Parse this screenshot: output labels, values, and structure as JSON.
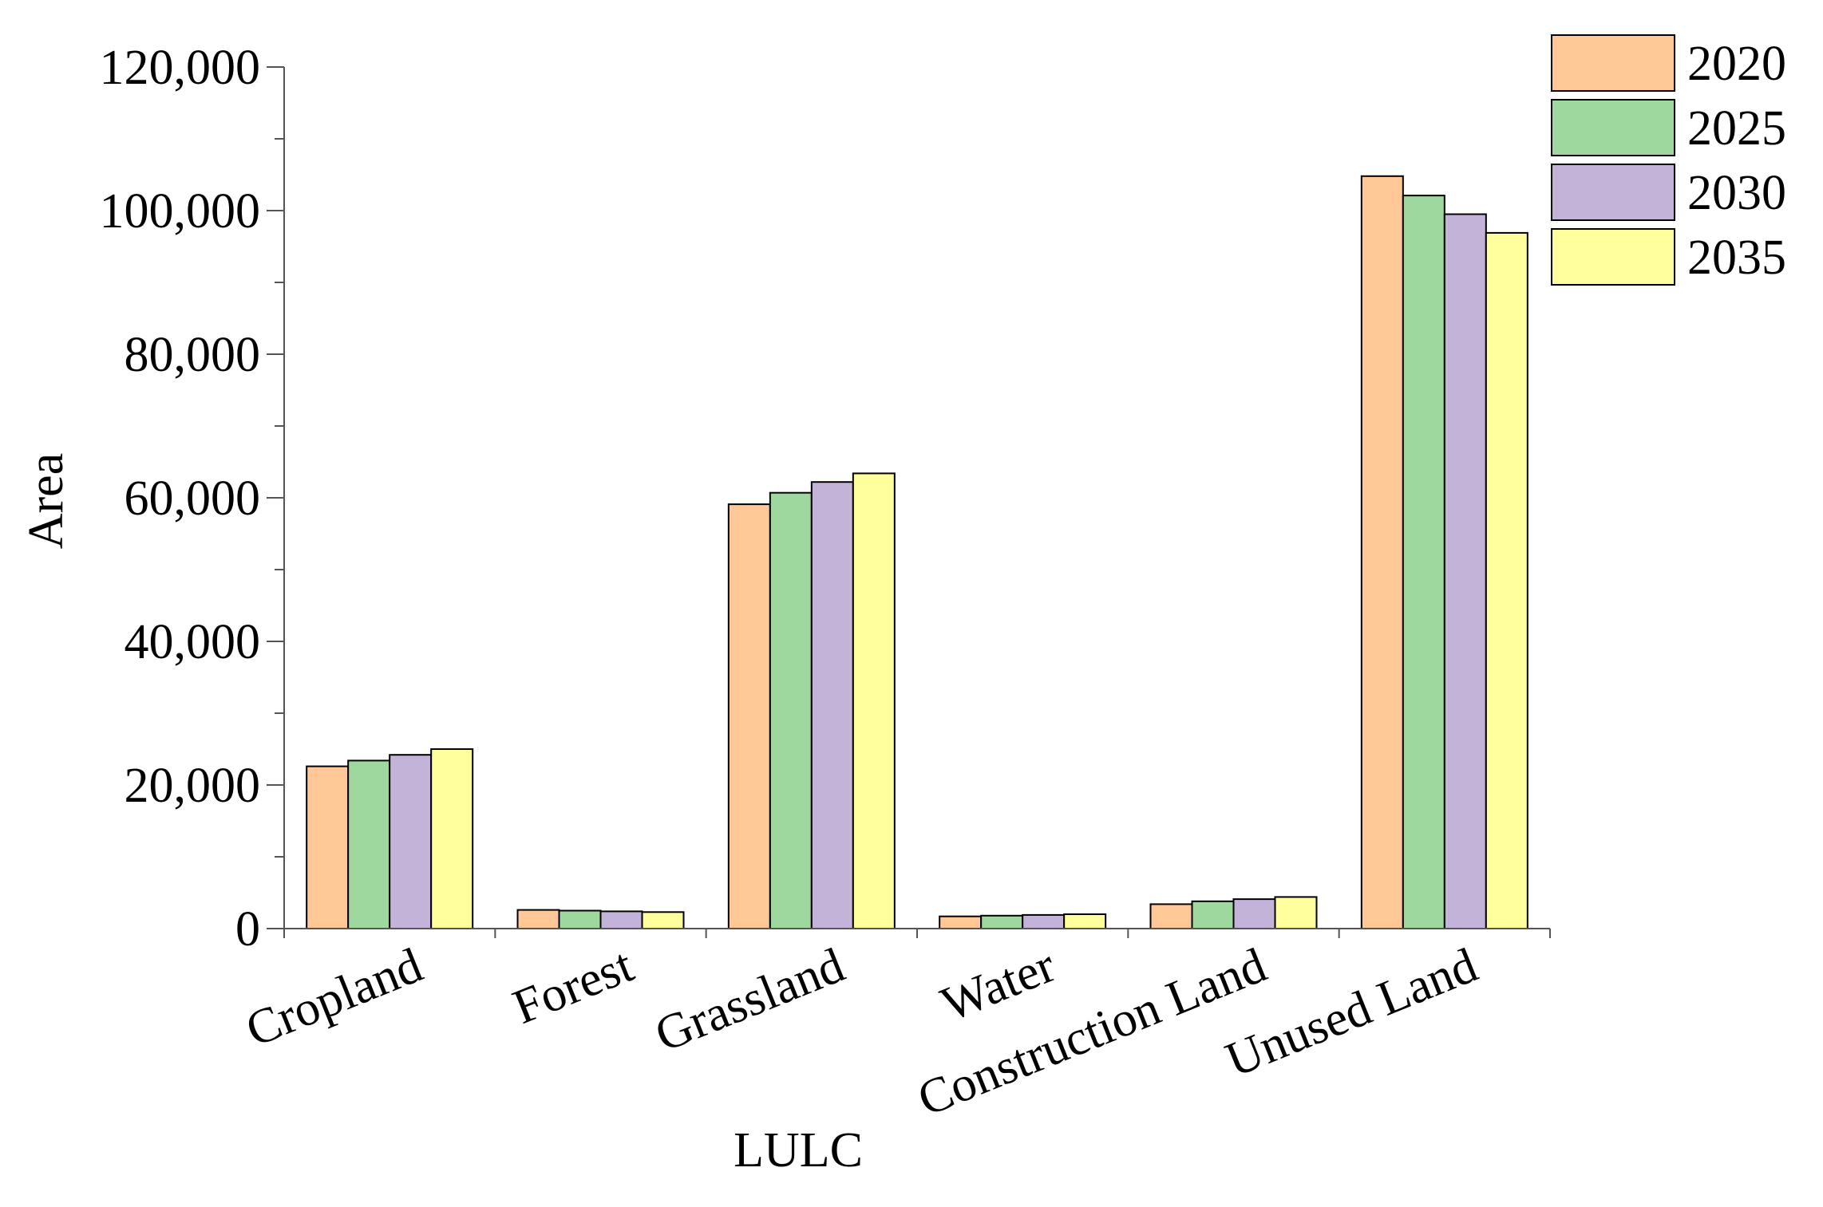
{
  "chart_data": {
    "type": "bar",
    "title": "",
    "xlabel": "LULC",
    "ylabel": "Area",
    "ylim": [
      0,
      120000
    ],
    "yticks": [
      0,
      20000,
      40000,
      60000,
      80000,
      100000,
      120000
    ],
    "ytick_labels": [
      "0",
      "20,000",
      "40,000",
      "60,000",
      "80,000",
      "100,000",
      "120,000"
    ],
    "categories": [
      "Cropland",
      "Forest",
      "Grassland",
      "Water",
      "Construction Land",
      "Unused Land"
    ],
    "series": [
      {
        "name": "2020",
        "color": "#FFC896",
        "values": [
          22600,
          2600,
          59100,
          1700,
          3400,
          104800
        ]
      },
      {
        "name": "2025",
        "color": "#9ED89E",
        "values": [
          23400,
          2500,
          60700,
          1800,
          3800,
          102100
        ]
      },
      {
        "name": "2030",
        "color": "#C3B3D8",
        "values": [
          24200,
          2400,
          62200,
          1900,
          4100,
          99500
        ]
      },
      {
        "name": "2035",
        "color": "#FFFF9E",
        "values": [
          25000,
          2300,
          63400,
          2000,
          4400,
          96900
        ]
      }
    ],
    "grid": false,
    "legend_position": "top-right"
  }
}
